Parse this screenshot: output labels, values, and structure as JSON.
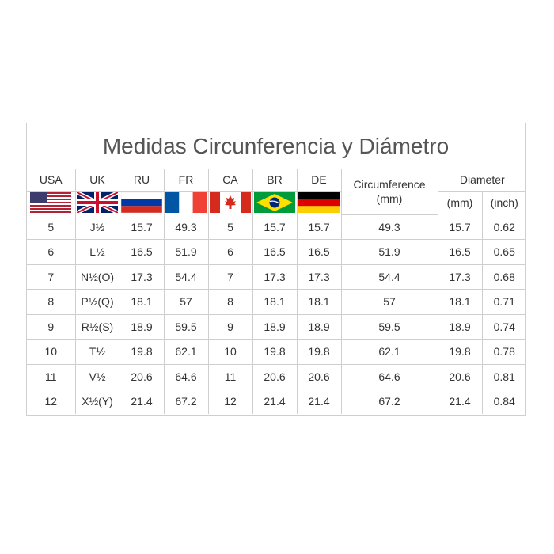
{
  "title": "Medidas Circunferencia y Diámetro",
  "columns": {
    "usa": "USA",
    "uk": "UK",
    "ru": "RU",
    "fr": "FR",
    "ca": "CA",
    "br": "BR",
    "de": "DE",
    "circumference": "Circumference",
    "circumference_unit": "(mm)",
    "diameter": "Diameter",
    "diameter_mm": "(mm)",
    "diameter_inch": "(inch)"
  },
  "rows": [
    [
      "5",
      "J½",
      "15.7",
      "49.3",
      "5",
      "15.7",
      "15.7",
      "49.3",
      "15.7",
      "0.62"
    ],
    [
      "6",
      "L½",
      "16.5",
      "51.9",
      "6",
      "16.5",
      "16.5",
      "51.9",
      "16.5",
      "0.65"
    ],
    [
      "7",
      "N½(O)",
      "17.3",
      "54.4",
      "7",
      "17.3",
      "17.3",
      "54.4",
      "17.3",
      "0.68"
    ],
    [
      "8",
      "P½(Q)",
      "18.1",
      "57",
      "8",
      "18.1",
      "18.1",
      "57",
      "18.1",
      "0.71"
    ],
    [
      "9",
      "R½(S)",
      "18.9",
      "59.5",
      "9",
      "18.9",
      "18.9",
      "59.5",
      "18.9",
      "0.74"
    ],
    [
      "10",
      "T½",
      "19.8",
      "62.1",
      "10",
      "19.8",
      "19.8",
      "62.1",
      "19.8",
      "0.78"
    ],
    [
      "11",
      "V½",
      "20.6",
      "64.6",
      "11",
      "20.6",
      "20.6",
      "64.6",
      "20.6",
      "0.81"
    ],
    [
      "12",
      "X½(Y)",
      "21.4",
      "67.2",
      "12",
      "21.4",
      "21.4",
      "67.2",
      "21.4",
      "0.84"
    ]
  ],
  "flags": [
    "usa-flag-icon",
    "uk-flag-icon",
    "russia-flag-icon",
    "france-flag-icon",
    "canada-flag-icon",
    "brazil-flag-icon",
    "germany-flag-icon"
  ]
}
